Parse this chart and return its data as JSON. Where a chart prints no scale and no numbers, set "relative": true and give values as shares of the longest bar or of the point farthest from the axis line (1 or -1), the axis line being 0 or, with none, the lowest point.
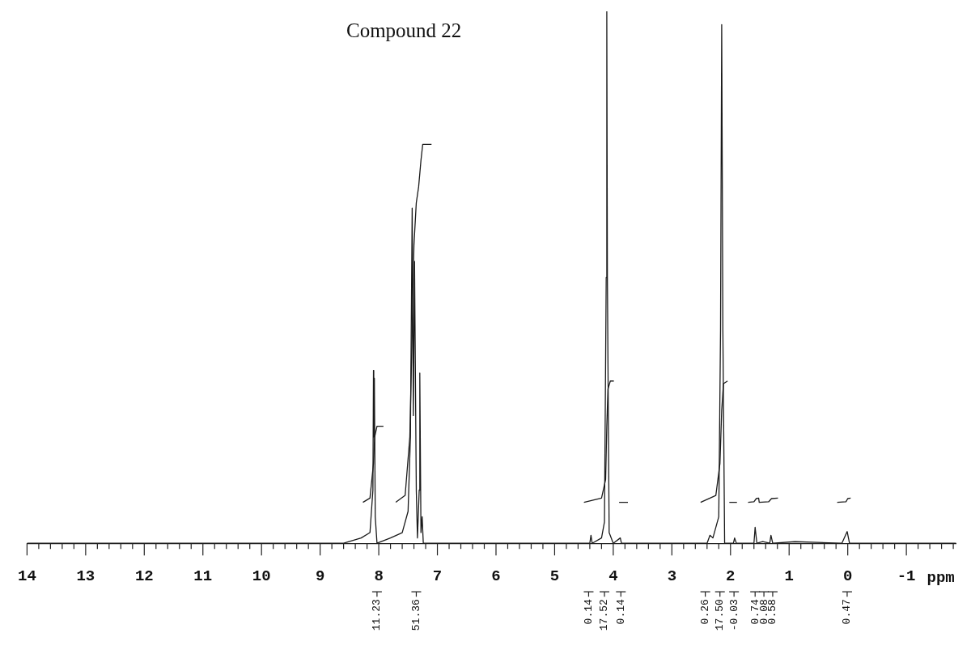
{
  "chart_data": {
    "type": "line",
    "title": "Compound 22",
    "xlabel": "ppm",
    "relative": true,
    "marker": "none",
    "xlim": [
      14,
      -1.85
    ],
    "xticks": [
      14,
      {
        "value": 13.8,
        "label": null
      },
      {
        "value": 13.6,
        "label": null
      },
      {
        "value": 13.4,
        "label": null
      },
      {
        "value": 13.2,
        "label": null
      },
      13,
      {
        "value": 12.8,
        "label": null
      },
      {
        "value": 12.6,
        "label": null
      },
      {
        "value": 12.4,
        "label": null
      },
      {
        "value": 12.2,
        "label": null
      },
      12,
      {
        "value": 11.8,
        "label": null
      },
      {
        "value": 11.6,
        "label": null
      },
      {
        "value": 11.4,
        "label": null
      },
      {
        "value": 11.2,
        "label": null
      },
      11,
      {
        "value": 10.8,
        "label": null
      },
      {
        "value": 10.6,
        "label": null
      },
      {
        "value": 10.4,
        "label": null
      },
      {
        "value": 10.2,
        "label": null
      },
      10,
      {
        "value": 9.8,
        "label": null
      },
      {
        "value": 9.6,
        "label": null
      },
      {
        "value": 9.4,
        "label": null
      },
      {
        "value": 9.2,
        "label": null
      },
      9,
      {
        "value": 8.8,
        "label": null
      },
      {
        "value": 8.6,
        "label": null
      },
      {
        "value": 8.4,
        "label": null
      },
      {
        "value": 8.2,
        "label": null
      },
      8,
      {
        "value": 7.8,
        "label": null
      },
      {
        "value": 7.6,
        "label": null
      },
      {
        "value": 7.4,
        "label": null
      },
      {
        "value": 7.2,
        "label": null
      },
      7,
      {
        "value": 6.8,
        "label": null
      },
      {
        "value": 6.6,
        "label": null
      },
      {
        "value": 6.4,
        "label": null
      },
      {
        "value": 6.2,
        "label": null
      },
      6,
      {
        "value": 5.8,
        "label": null
      },
      {
        "value": 5.6,
        "label": null
      },
      {
        "value": 5.4,
        "label": null
      },
      {
        "value": 5.2,
        "label": null
      },
      5,
      {
        "value": 4.8,
        "label": null
      },
      {
        "value": 4.6,
        "label": null
      },
      {
        "value": 4.4,
        "label": null
      },
      {
        "value": 4.2,
        "label": null
      },
      4,
      {
        "value": 3.8,
        "label": null
      },
      {
        "value": 3.6,
        "label": null
      },
      {
        "value": 3.4,
        "label": null
      },
      {
        "value": 3.2,
        "label": null
      },
      3,
      {
        "value": 2.8,
        "label": null
      },
      {
        "value": 2.6,
        "label": null
      },
      {
        "value": 2.4,
        "label": null
      },
      {
        "value": 2.2,
        "label": null
      },
      2,
      {
        "value": 1.8,
        "label": null
      },
      {
        "value": 1.6,
        "label": null
      },
      {
        "value": 1.4,
        "label": null
      },
      {
        "value": 1.2,
        "label": null
      },
      1,
      {
        "value": 0.8,
        "label": null
      },
      {
        "value": 0.6,
        "label": null
      },
      {
        "value": 0.4,
        "label": null
      },
      {
        "value": 0.2,
        "label": null
      },
      0,
      {
        "value": -0.2,
        "label": null
      },
      {
        "value": -0.4,
        "label": null
      },
      {
        "value": -0.6,
        "label": null
      },
      {
        "value": -0.8,
        "label": null
      },
      -1,
      {
        "value": -1.2,
        "label": null
      },
      {
        "value": -1.4,
        "label": null
      },
      {
        "value": -1.6,
        "label": null
      },
      {
        "value": -1.8,
        "label": null
      }
    ],
    "series": [
      {
        "color": "#1a1a1a",
        "x": [
          14,
          12,
          10,
          8.6,
          8.3,
          8.15,
          8.1,
          8.09,
          8.085,
          8.075,
          8.06,
          8.03,
          7.8,
          7.6,
          7.5,
          7.46,
          7.43,
          7.41,
          7.39,
          7.36,
          7.34,
          7.31,
          7.3,
          7.28,
          7.26,
          7.24,
          7,
          6,
          5,
          4.4,
          4.38,
          4.36,
          4.2,
          4.15,
          4.12,
          4.11,
          4.1,
          4.07,
          4,
          3.88,
          3.86,
          3,
          2.4,
          2.35,
          2.3,
          2.2,
          2.17,
          2.15,
          2.13,
          2.1,
          2.05,
          1.95,
          1.93,
          1.9,
          1.6,
          1.58,
          1.55,
          1.45,
          1.33,
          1.31,
          1.28,
          0.9,
          0.1,
          0.01,
          -0.03,
          -1.85
        ],
        "values": [
          0,
          0,
          0,
          0,
          0.01,
          0.02,
          0.1,
          0.325,
          0.2,
          0.31,
          0.05,
          0,
          0.01,
          0.02,
          0.06,
          0.2,
          0.63,
          0.24,
          0.53,
          0.1,
          0.01,
          0.1,
          0.32,
          0.02,
          0.05,
          0,
          0,
          0,
          0,
          0,
          0.015,
          0,
          0.01,
          0.04,
          0.5,
          1,
          0.5,
          0.02,
          0,
          0.01,
          0,
          0,
          0,
          0.015,
          0.01,
          0.05,
          0.4,
          0.975,
          0.4,
          0,
          0,
          0,
          0.01,
          0,
          0,
          0.03,
          0,
          0.003,
          0,
          0.015,
          0,
          0.003,
          0,
          0.022,
          0,
          0
        ]
      },
      {
        "color": "#1a1a1a",
        "x": [
          8.27,
          8.15,
          8.09,
          8.07,
          8.03,
          7.92,
          7.8,
          7.71,
          7.55,
          7.47,
          7.43,
          7.4,
          7.36,
          7.32,
          7.28,
          7.25,
          7.2,
          7.1,
          5,
          4.5,
          4.2,
          4.13,
          4.11,
          4.09,
          4.05,
          3.99,
          3.95,
          3.9,
          3.75,
          3,
          2.51,
          2.25,
          2.18,
          2.15,
          2.12,
          2.05,
          2.03,
          2.02,
          1.89,
          1.8,
          1.7,
          1.6,
          1.56,
          1.52,
          1.51,
          1.35,
          1.3,
          1.19,
          0.5,
          0.18,
          0.03,
          0,
          -0.05
        ],
        "values": [
          0.077,
          0.085,
          0.15,
          0.2,
          0.22,
          0.22,
          null,
          0.077,
          0.09,
          0.2,
          0.4,
          0.56,
          0.64,
          0.67,
          0.72,
          0.75,
          0.75,
          0.75,
          null,
          0.077,
          0.085,
          0.12,
          0.22,
          0.29,
          0.305,
          0.305,
          null,
          0.077,
          0.077,
          null,
          0.077,
          0.09,
          0.15,
          0.25,
          0.3,
          0.305,
          null,
          0.077,
          0.077,
          null,
          0.077,
          0.078,
          0.084,
          0.085,
          0.077,
          0.078,
          0.084,
          0.085,
          null,
          0.077,
          0.078,
          0.084,
          0.085
        ]
      }
    ],
    "annotations": [
      {
        "text": "11.23",
        "x": 8.03
      },
      {
        "text": "51.36",
        "x": 7.36
      },
      {
        "text": "0.14",
        "x": 4.42
      },
      {
        "text": "17.52",
        "x": 4.15
      },
      {
        "text": "0.14",
        "x": 3.87
      },
      {
        "text": "0.26",
        "x": 2.43
      },
      {
        "text": "17.50",
        "x": 2.18
      },
      {
        "text": "-0.03",
        "x": 1.94
      },
      {
        "text": "0.74",
        "x": 1.58
      },
      {
        "text": "0.08",
        "x": 1.43
      },
      {
        "text": "0.58",
        "x": 1.28
      },
      {
        "text": "0.47",
        "x": 0.01
      }
    ]
  }
}
